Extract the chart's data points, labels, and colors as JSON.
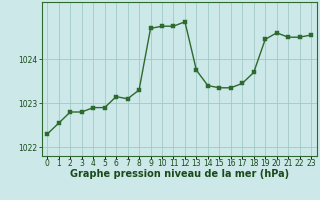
{
  "x": [
    0,
    1,
    2,
    3,
    4,
    5,
    6,
    7,
    8,
    9,
    10,
    11,
    12,
    13,
    14,
    15,
    16,
    17,
    18,
    19,
    20,
    21,
    22,
    23
  ],
  "y": [
    1022.3,
    1022.55,
    1022.8,
    1022.8,
    1022.9,
    1022.9,
    1023.15,
    1023.1,
    1023.3,
    1024.7,
    1024.75,
    1024.75,
    1024.85,
    1023.75,
    1023.4,
    1023.35,
    1023.35,
    1023.45,
    1023.7,
    1024.45,
    1024.6,
    1024.5,
    1024.5,
    1024.55
  ],
  "line_color": "#2d6a2d",
  "marker_color": "#2d6a2d",
  "bg_color": "#cce8e8",
  "grid_color": "#a0c8c8",
  "border_color": "#2d6a2d",
  "xlabel": "Graphe pression niveau de la mer (hPa)",
  "xlabel_color": "#1a4a1a",
  "tick_color": "#1a4a1a",
  "ylim": [
    1021.8,
    1025.3
  ],
  "yticks": [
    1022,
    1023,
    1024
  ],
  "xlim": [
    -0.5,
    23.5
  ],
  "xticks": [
    0,
    1,
    2,
    3,
    4,
    5,
    6,
    7,
    8,
    9,
    10,
    11,
    12,
    13,
    14,
    15,
    16,
    17,
    18,
    19,
    20,
    21,
    22,
    23
  ],
  "xtick_labels": [
    "0",
    "1",
    "2",
    "3",
    "4",
    "5",
    "6",
    "7",
    "8",
    "9",
    "10",
    "11",
    "12",
    "13",
    "14",
    "15",
    "16",
    "17",
    "18",
    "19",
    "20",
    "21",
    "22",
    "23"
  ],
  "tick_fontsize": 5.5,
  "xlabel_fontsize": 7.0
}
